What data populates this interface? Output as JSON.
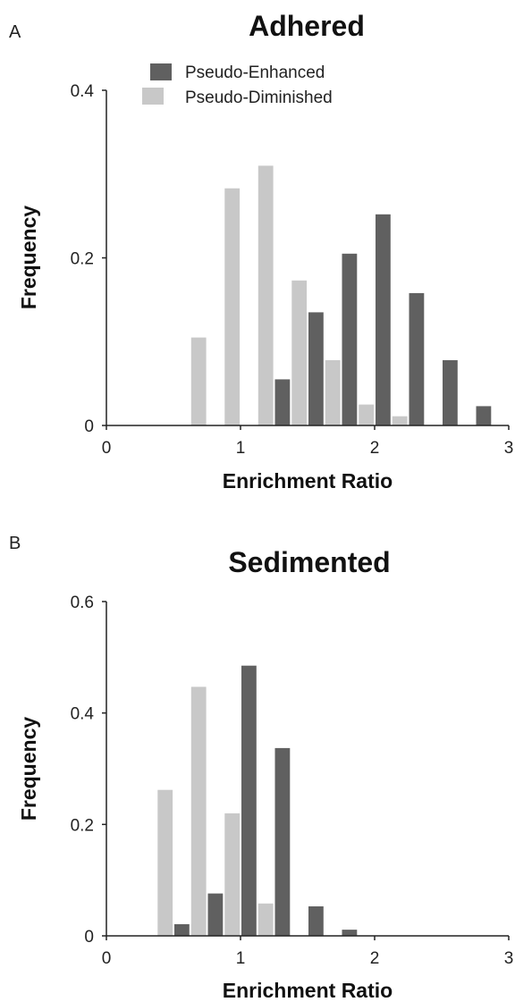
{
  "chart_data": [
    {
      "panel_label": "A",
      "type": "bar",
      "title": "Adhered",
      "xlabel": "Enrichment Ratio",
      "ylabel": "Frequency",
      "xlim": [
        0,
        3
      ],
      "ylim": [
        0,
        0.4
      ],
      "xticks": [
        0,
        1,
        2,
        3
      ],
      "yticks": [
        0,
        0.2,
        0.4
      ],
      "ytick_labels": [
        "0",
        "0.2",
        "0.4"
      ],
      "bin_width": 0.25,
      "legend_position": "top-center",
      "colors": {
        "Pseudo-Enhanced": "#606060",
        "Pseudo-Diminished": "#c8c8c8"
      },
      "series": [
        {
          "name": "Pseudo-Enhanced",
          "x": [
            1.25,
            1.5,
            1.75,
            2.0,
            2.25,
            2.5,
            2.75
          ],
          "values": [
            0.055,
            0.135,
            0.205,
            0.252,
            0.158,
            0.078,
            0.023
          ]
        },
        {
          "name": "Pseudo-Diminished",
          "x": [
            0.75,
            1.0,
            1.25,
            1.5,
            1.75,
            2.0,
            2.25
          ],
          "values": [
            0.105,
            0.283,
            0.31,
            0.173,
            0.078,
            0.025,
            0.011
          ]
        }
      ]
    },
    {
      "panel_label": "B",
      "type": "bar",
      "title": "Sedimented",
      "xlabel": "Enrichment Ratio",
      "ylabel": "Frequency",
      "xlim": [
        0,
        3
      ],
      "ylim": [
        0,
        0.6
      ],
      "xticks": [
        0,
        1,
        2,
        3
      ],
      "yticks": [
        0,
        0.2,
        0.4,
        0.6
      ],
      "ytick_labels": [
        "0",
        "0.2",
        "0.4",
        "0.6"
      ],
      "bin_width": 0.25,
      "colors": {
        "Pseudo-Enhanced": "#606060",
        "Pseudo-Diminished": "#c8c8c8"
      },
      "series": [
        {
          "name": "Pseudo-Enhanced",
          "x": [
            0.5,
            0.75,
            1.0,
            1.25,
            1.5,
            1.75
          ],
          "values": [
            0.021,
            0.076,
            0.485,
            0.337,
            0.053,
            0.011
          ]
        },
        {
          "name": "Pseudo-Diminished",
          "x": [
            0.5,
            0.75,
            1.0,
            1.25
          ],
          "values": [
            0.262,
            0.447,
            0.22,
            0.058
          ]
        }
      ]
    }
  ]
}
